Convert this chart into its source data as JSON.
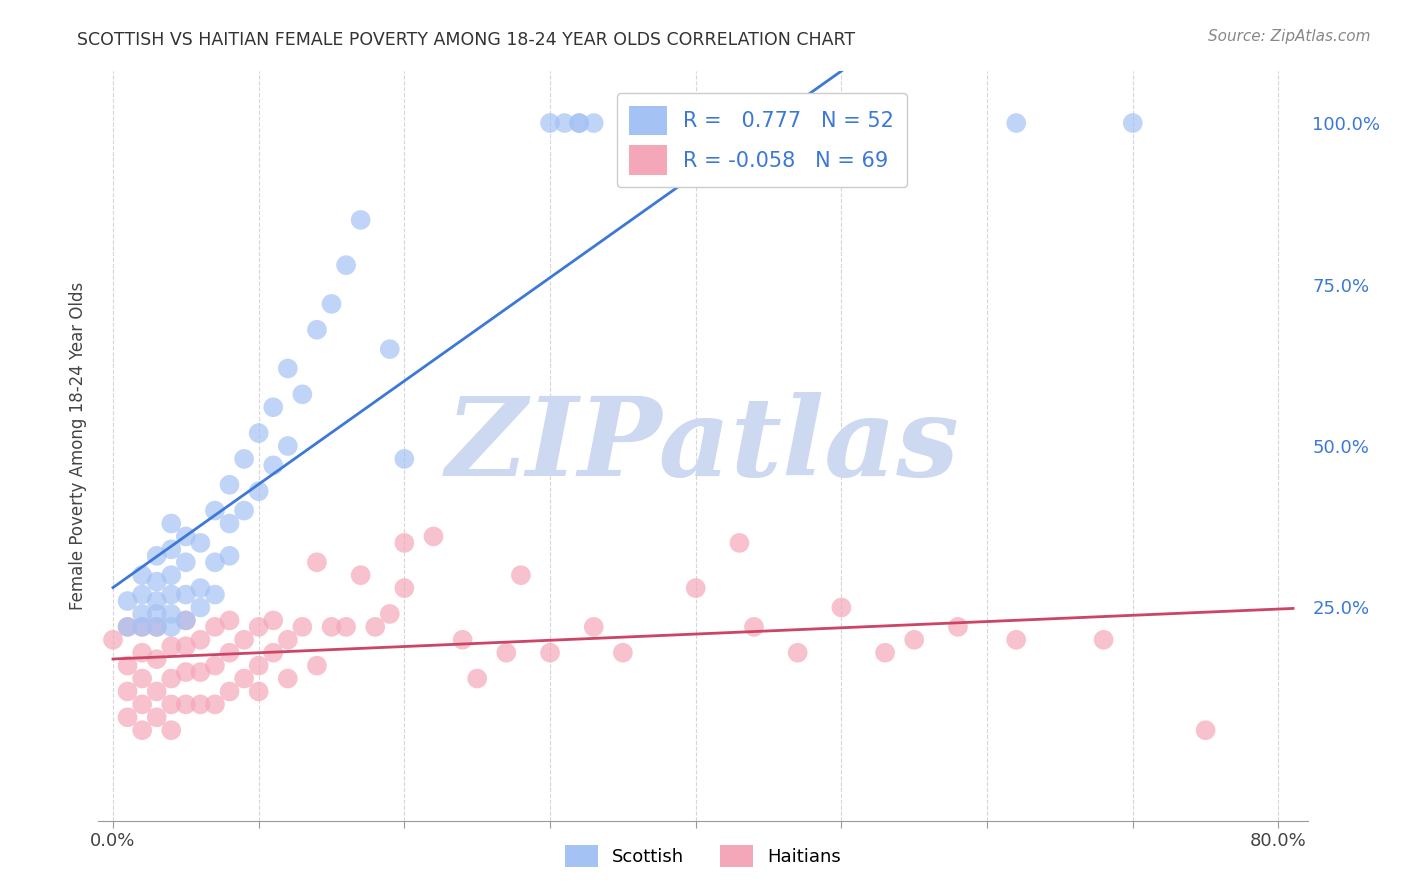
{
  "title": "SCOTTISH VS HAITIAN FEMALE POVERTY AMONG 18-24 YEAR OLDS CORRELATION CHART",
  "source": "Source: ZipAtlas.com",
  "ylabel": "Female Poverty Among 18-24 Year Olds",
  "xlim": [
    -0.01,
    0.82
  ],
  "ylim": [
    -0.08,
    1.08
  ],
  "xticks": [
    0.0,
    0.1,
    0.2,
    0.3,
    0.4,
    0.5,
    0.6,
    0.7,
    0.8
  ],
  "xticklabels": [
    "0.0%",
    "",
    "",
    "",
    "",
    "",
    "",
    "",
    "80.0%"
  ],
  "yticks_right": [
    0.25,
    0.5,
    0.75,
    1.0
  ],
  "yticklabels_right": [
    "25.0%",
    "50.0%",
    "75.0%",
    "100.0%"
  ],
  "scottish_color": "#a4c2f4",
  "haitian_color": "#f4a7b9",
  "scottish_line_color": "#3c78d8",
  "haitian_line_color": "#cc4466",
  "R_scottish": 0.777,
  "N_scottish": 52,
  "R_haitian": -0.058,
  "N_haitian": 69,
  "watermark_text": "ZIPatlas",
  "watermark_color": "#ccd9f0",
  "scottish_x": [
    0.01,
    0.01,
    0.02,
    0.02,
    0.02,
    0.02,
    0.03,
    0.03,
    0.03,
    0.03,
    0.03,
    0.04,
    0.04,
    0.04,
    0.04,
    0.04,
    0.04,
    0.05,
    0.05,
    0.05,
    0.05,
    0.06,
    0.06,
    0.06,
    0.07,
    0.07,
    0.07,
    0.08,
    0.08,
    0.08,
    0.09,
    0.09,
    0.1,
    0.1,
    0.11,
    0.11,
    0.12,
    0.12,
    0.13,
    0.14,
    0.15,
    0.16,
    0.17,
    0.19,
    0.2,
    0.3,
    0.31,
    0.32,
    0.32,
    0.33,
    0.62,
    0.7
  ],
  "scottish_y": [
    0.22,
    0.26,
    0.22,
    0.24,
    0.27,
    0.3,
    0.22,
    0.24,
    0.26,
    0.29,
    0.33,
    0.22,
    0.24,
    0.27,
    0.3,
    0.34,
    0.38,
    0.23,
    0.27,
    0.32,
    0.36,
    0.25,
    0.28,
    0.35,
    0.27,
    0.32,
    0.4,
    0.33,
    0.38,
    0.44,
    0.4,
    0.48,
    0.43,
    0.52,
    0.47,
    0.56,
    0.5,
    0.62,
    0.58,
    0.68,
    0.72,
    0.78,
    0.85,
    0.65,
    0.48,
    1.0,
    1.0,
    1.0,
    1.0,
    1.0,
    1.0,
    1.0
  ],
  "haitian_x": [
    0.0,
    0.01,
    0.01,
    0.01,
    0.01,
    0.02,
    0.02,
    0.02,
    0.02,
    0.02,
    0.03,
    0.03,
    0.03,
    0.03,
    0.04,
    0.04,
    0.04,
    0.04,
    0.05,
    0.05,
    0.05,
    0.05,
    0.06,
    0.06,
    0.06,
    0.07,
    0.07,
    0.07,
    0.08,
    0.08,
    0.08,
    0.09,
    0.09,
    0.1,
    0.1,
    0.1,
    0.11,
    0.11,
    0.12,
    0.12,
    0.13,
    0.14,
    0.14,
    0.15,
    0.16,
    0.17,
    0.18,
    0.19,
    0.2,
    0.2,
    0.22,
    0.24,
    0.25,
    0.27,
    0.28,
    0.3,
    0.33,
    0.35,
    0.4,
    0.43,
    0.44,
    0.47,
    0.5,
    0.53,
    0.55,
    0.58,
    0.62,
    0.68,
    0.75
  ],
  "haitian_y": [
    0.2,
    0.08,
    0.12,
    0.16,
    0.22,
    0.06,
    0.1,
    0.14,
    0.18,
    0.22,
    0.08,
    0.12,
    0.17,
    0.22,
    0.06,
    0.1,
    0.14,
    0.19,
    0.1,
    0.15,
    0.19,
    0.23,
    0.1,
    0.15,
    0.2,
    0.1,
    0.16,
    0.22,
    0.12,
    0.18,
    0.23,
    0.14,
    0.2,
    0.12,
    0.16,
    0.22,
    0.18,
    0.23,
    0.14,
    0.2,
    0.22,
    0.16,
    0.32,
    0.22,
    0.22,
    0.3,
    0.22,
    0.24,
    0.28,
    0.35,
    0.36,
    0.2,
    0.14,
    0.18,
    0.3,
    0.18,
    0.22,
    0.18,
    0.28,
    0.35,
    0.22,
    0.18,
    0.25,
    0.18,
    0.2,
    0.22,
    0.2,
    0.2,
    0.06
  ]
}
